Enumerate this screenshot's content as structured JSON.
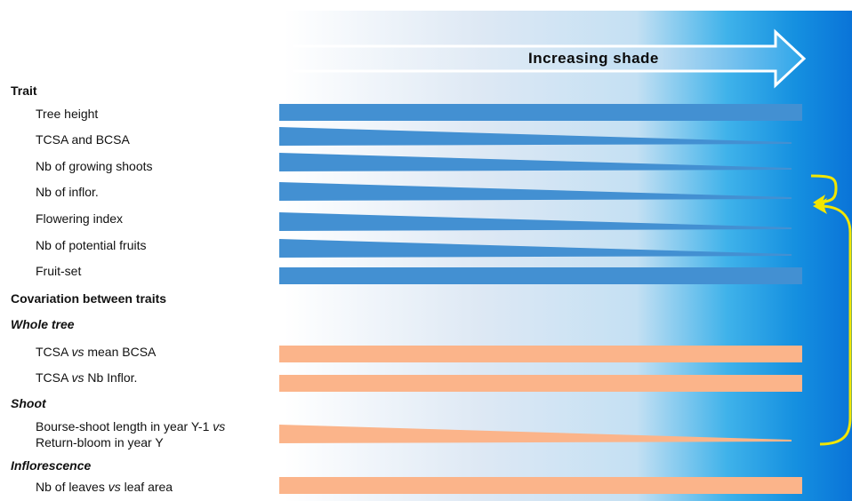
{
  "colors": {
    "trait_bar": "#4390d2",
    "covariation_bar": "#fbb48a",
    "loop_arrow": "#f2e600"
  },
  "arrow": {
    "label": "Increasing shade"
  },
  "headings": {
    "trait": "Trait",
    "covariation": "Covariation  between traits",
    "whole_tree": "Whole tree",
    "shoot": "Shoot",
    "inflorescence": "Inflorescence"
  },
  "traits": [
    {
      "label": "Tree height",
      "shape": "constant"
    },
    {
      "label": "TCSA and BCSA",
      "shape": "decreasing"
    },
    {
      "label": "Nb of growing shoots",
      "shape": "decreasing"
    },
    {
      "label": "Nb of inflor.",
      "shape": "decreasing"
    },
    {
      "label": "Flowering index",
      "shape": "decreasing"
    },
    {
      "label": "Nb of potential fruits",
      "shape": "decreasing"
    },
    {
      "label": "Fruit-set",
      "shape": "constant"
    }
  ],
  "covariations": {
    "tcsa_bcsa": {
      "a": "TCSA ",
      "vs": "vs",
      "b": " mean BCSA",
      "shape": "constant"
    },
    "tcsa_inflor": {
      "a": "TCSA ",
      "vs": "vs",
      "b": " Nb Inflor.",
      "shape": "constant"
    },
    "bourse": {
      "a": "Bourse-shoot  length in year Y-1 ",
      "vs": "vs",
      "b2": "Return-bloom  in year Y",
      "shape": "decreasing"
    },
    "leaves": {
      "a": "Nb of leaves ",
      "vs": "vs",
      "b": " leaf area",
      "shape": "constant"
    }
  }
}
